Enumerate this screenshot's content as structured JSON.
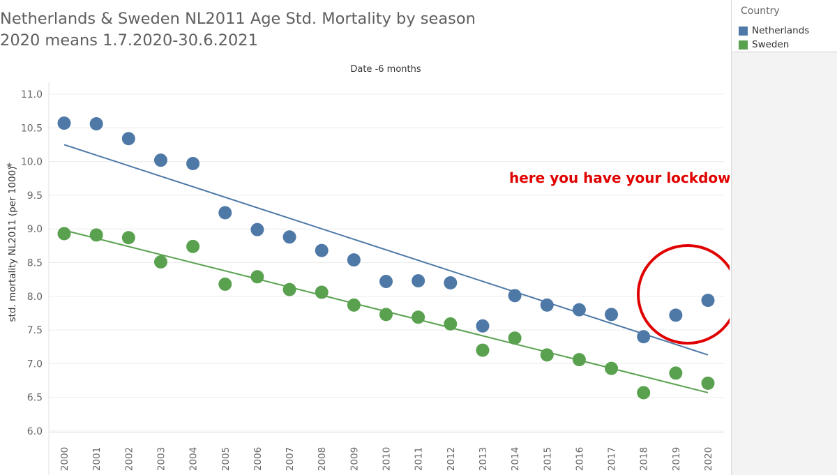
{
  "title": {
    "line1": "Netherlands & Sweden NL2011 Age Std. Mortality by season",
    "line2": "2020 means 1.7.2020-30.6.2021"
  },
  "legend": {
    "title": "Country",
    "items": [
      {
        "label": "Netherlands",
        "color": "#4e79a7"
      },
      {
        "label": "Sweden",
        "color": "#59a14f"
      }
    ]
  },
  "chart_data": {
    "type": "scatter",
    "xlabel_top": "Date -6 months",
    "ylabel": "std. mortality NL2011 (per 1000)",
    "ylim": [
      6.0,
      11.0
    ],
    "y_ticks": [
      "6.0",
      "6.5",
      "7.0",
      "7.5",
      "8.0",
      "8.5",
      "9.0",
      "9.5",
      "10.0",
      "10.5",
      "11.0"
    ],
    "categories": [
      "2000",
      "2001",
      "2002",
      "2003",
      "2004",
      "2005",
      "2006",
      "2007",
      "2008",
      "2009",
      "2010",
      "2011",
      "2012",
      "2013",
      "2014",
      "2015",
      "2016",
      "2017",
      "2018",
      "2019",
      "2020"
    ],
    "series": [
      {
        "name": "Netherlands",
        "color": "#4e79a7",
        "values": [
          10.57,
          10.56,
          10.34,
          10.02,
          9.97,
          9.24,
          8.99,
          8.88,
          8.68,
          8.54,
          8.22,
          8.23,
          8.2,
          7.56,
          8.01,
          7.87,
          7.8,
          7.73,
          7.4,
          7.72,
          7.94
        ],
        "trend": {
          "from": 10.25,
          "to": 7.13
        }
      },
      {
        "name": "Sweden",
        "color": "#59a14f",
        "values": [
          8.93,
          8.91,
          8.87,
          8.51,
          8.74,
          8.18,
          8.29,
          8.1,
          8.06,
          7.87,
          7.73,
          7.69,
          7.59,
          7.2,
          7.38,
          7.13,
          7.06,
          6.93,
          6.57,
          6.86,
          6.71
        ],
        "trend": {
          "from": 8.98,
          "to": 6.57
        }
      }
    ],
    "annotation": {
      "text": "here you have your lockdowns",
      "color": "#e00000",
      "circle_color": "#e00000",
      "circle_around": [
        "2019",
        "2020"
      ]
    },
    "grid": true
  }
}
